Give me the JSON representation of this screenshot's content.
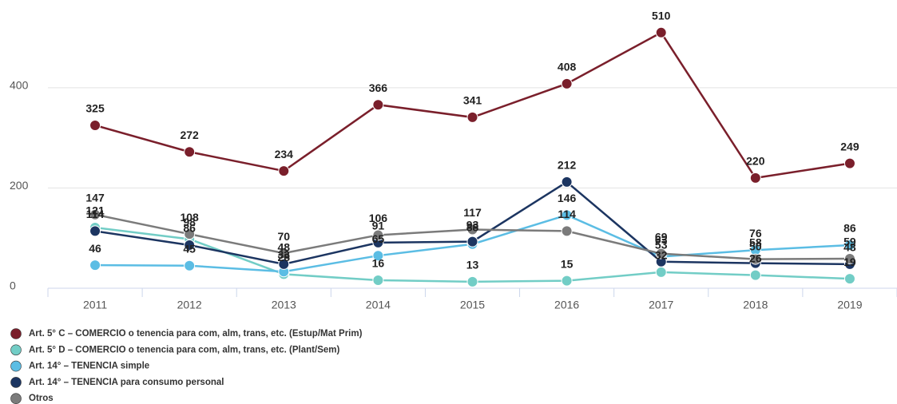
{
  "chart_data": {
    "type": "line",
    "categories": [
      "2011",
      "2012",
      "2013",
      "2014",
      "2015",
      "2016",
      "2017",
      "2018",
      "2019"
    ],
    "series": [
      {
        "name": "Art. 5° C – COMERCIO o tenencia para com, alm, trans, etc. (Estup/Mat Prim)",
        "color": "#7a1f2b",
        "values": [
          325,
          272,
          234,
          366,
          341,
          408,
          510,
          220,
          249
        ]
      },
      {
        "name": "Art. 5° D – COMERCIO o tenencia para com, alm, trans, etc. (Plant/Sem)",
        "color": "#72cdc6",
        "values": [
          121,
          98,
          28,
          16,
          13,
          15,
          32,
          26,
          19
        ]
      },
      {
        "name": "Art. 14° – TENENCIA simple",
        "color": "#5bbde4",
        "values": [
          46,
          45,
          33,
          65,
          88,
          146,
          63,
          76,
          86
        ]
      },
      {
        "name": "Art. 14° – TENENCIA para consumo personal",
        "color": "#1c3561",
        "values": [
          114,
          86,
          48,
          91,
          93,
          212,
          53,
          50,
          48
        ]
      },
      {
        "name": "Otros",
        "color": "#7b7b7b",
        "values": [
          147,
          108,
          70,
          106,
          117,
          114,
          69,
          58,
          59
        ]
      }
    ],
    "ylim": [
      0,
      575
    ],
    "yticks": [
      0,
      200,
      400
    ],
    "grid": true
  }
}
